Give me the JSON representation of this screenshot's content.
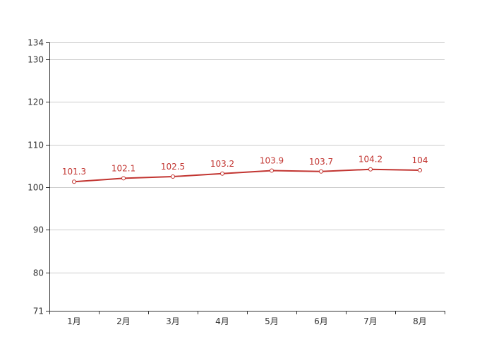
{
  "chart_data": {
    "type": "line",
    "categories": [
      "1月",
      "2月",
      "3月",
      "4月",
      "5月",
      "6月",
      "7月",
      "8月"
    ],
    "series": [
      {
        "values": [
          101.3,
          102.1,
          102.5,
          103.2,
          103.9,
          103.7,
          104.2,
          104
        ],
        "labels": [
          "101.3",
          "102.1",
          "102.5",
          "103.2",
          "103.9",
          "103.7",
          "104.2",
          "104"
        ]
      }
    ],
    "ylim": [
      71,
      134
    ],
    "yticks": [
      71,
      80,
      90,
      100,
      110,
      120,
      130,
      134
    ],
    "ytick_labels": [
      "71",
      "80",
      "90",
      "100",
      "110",
      "120",
      "130",
      "134"
    ],
    "grid": true,
    "line_color": "#c23531",
    "axis_color": "#333333",
    "grid_color": "#cccccc",
    "label_color": "#c23531"
  }
}
